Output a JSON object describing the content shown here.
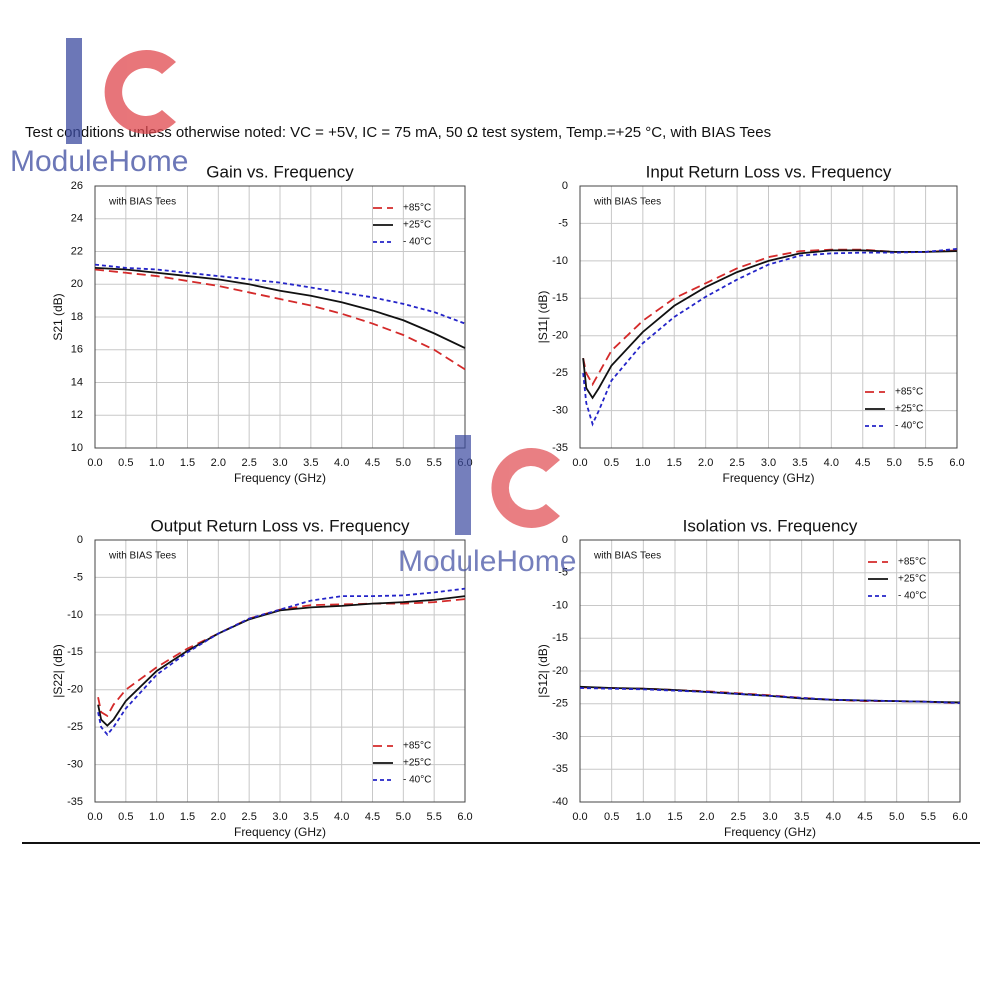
{
  "header": "Test conditions unless otherwise noted:   VC = +5V, IC = 75 mA, 50 Ω test system, Temp.=+25 °C, with BIAS Tees",
  "watermark": "ModuleHome",
  "chart_data": [
    {
      "type": "line",
      "title": "Gain vs. Frequency",
      "annotation": "with BIAS Tees",
      "x_label": "Frequency (GHz)",
      "y_label": "S21 (dB)",
      "x": [
        0,
        0.5,
        1,
        1.5,
        2,
        2.5,
        3,
        3.5,
        4,
        4.5,
        5,
        5.5,
        6
      ],
      "series": [
        {
          "name": "+85°C",
          "color": "#d42a2a",
          "style": "dashed",
          "values": [
            20.9,
            20.7,
            20.5,
            20.2,
            19.9,
            19.5,
            19.1,
            18.7,
            18.2,
            17.6,
            16.9,
            16.0,
            14.8
          ]
        },
        {
          "name": "+25°C",
          "color": "#111111",
          "style": "solid",
          "values": [
            21.0,
            20.9,
            20.7,
            20.5,
            20.3,
            20.0,
            19.6,
            19.3,
            18.9,
            18.4,
            17.8,
            17.0,
            16.1
          ]
        },
        {
          "name": "- 40°C",
          "color": "#2424c8",
          "style": "dotted",
          "values": [
            21.2,
            21.0,
            20.9,
            20.7,
            20.5,
            20.3,
            20.1,
            19.8,
            19.5,
            19.2,
            18.8,
            18.3,
            17.6
          ]
        }
      ],
      "xlim": [
        0,
        6
      ],
      "ylim": [
        10,
        26
      ],
      "xticks": [
        {
          "value": 0,
          "label": "0.0"
        },
        {
          "value": 0.5,
          "label": "0.5"
        },
        {
          "value": 1,
          "label": "1.0"
        },
        {
          "value": 1.5,
          "label": "1.5"
        },
        {
          "value": 2,
          "label": "2.0"
        },
        {
          "value": 2.5,
          "label": "2.5"
        },
        {
          "value": 3,
          "label": "3.0"
        },
        {
          "value": 3.5,
          "label": "3.5"
        },
        {
          "value": 4,
          "label": "4.0"
        },
        {
          "value": 4.5,
          "label": "4.5"
        },
        {
          "value": 5,
          "label": "5.0"
        },
        {
          "value": 5.5,
          "label": "5.5"
        },
        {
          "value": 6,
          "label": "6.0"
        }
      ],
      "yticks": [
        10,
        12,
        14,
        16,
        18,
        20,
        22,
        24,
        26
      ],
      "grid": true,
      "legend": "upper right"
    },
    {
      "type": "line",
      "title": "Input Return Loss vs. Frequency",
      "annotation": "with BIAS Tees",
      "x_label": "Frequency (GHz)",
      "y_label": "|S11| (dB)",
      "x": [
        0.05,
        0.1,
        0.2,
        0.3,
        0.5,
        1,
        1.5,
        2,
        2.5,
        3,
        3.5,
        4,
        4.5,
        5,
        5.5,
        6
      ],
      "series": [
        {
          "name": "+85°C",
          "color": "#d42a2a",
          "style": "dashed",
          "values": [
            -23,
            -25,
            -26.5,
            -25,
            -22,
            -18,
            -15,
            -13,
            -11,
            -9.5,
            -8.7,
            -8.5,
            -8.5,
            -8.8,
            -8.8,
            -8.6
          ]
        },
        {
          "name": "+25°C",
          "color": "#111111",
          "style": "solid",
          "values": [
            -23,
            -27,
            -28.3,
            -27,
            -24,
            -19.5,
            -16,
            -13.5,
            -11.5,
            -10,
            -9,
            -8.6,
            -8.6,
            -8.8,
            -8.8,
            -8.7
          ]
        },
        {
          "name": "- 40°C",
          "color": "#2424c8",
          "style": "dotted",
          "values": [
            -25,
            -29,
            -31.8,
            -30,
            -26,
            -21,
            -17.5,
            -14.8,
            -12.5,
            -10.5,
            -9.3,
            -9,
            -8.9,
            -8.9,
            -8.8,
            -8.4
          ]
        }
      ],
      "xlim": [
        0,
        6
      ],
      "ylim": [
        -35,
        0
      ],
      "xticks": [
        {
          "value": 0,
          "label": "0.0"
        },
        {
          "value": 0.5,
          "label": "0.5"
        },
        {
          "value": 1,
          "label": "1.0"
        },
        {
          "value": 1.5,
          "label": "1.5"
        },
        {
          "value": 2,
          "label": "2.0"
        },
        {
          "value": 2.5,
          "label": "2.5"
        },
        {
          "value": 3,
          "label": "3.0"
        },
        {
          "value": 3.5,
          "label": "3.5"
        },
        {
          "value": 4,
          "label": "4.0"
        },
        {
          "value": 4.5,
          "label": "4.5"
        },
        {
          "value": 5,
          "label": "5.0"
        },
        {
          "value": 5.5,
          "label": "5.5"
        },
        {
          "value": 6,
          "label": "6.0"
        }
      ],
      "yticks": [
        -35,
        -30,
        -25,
        -20,
        -15,
        -10,
        -5,
        0
      ],
      "grid": true,
      "legend": "lower right"
    },
    {
      "type": "line",
      "title": "Output Return Loss vs. Frequency",
      "annotation": "with BIAS Tees",
      "x_label": "Frequency (GHz)",
      "y_label": "|S22| (dB)",
      "x": [
        0.05,
        0.1,
        0.2,
        0.3,
        0.5,
        1,
        1.5,
        2,
        2.5,
        3,
        3.5,
        4,
        4.5,
        5,
        5.5,
        6
      ],
      "series": [
        {
          "name": "+85°C",
          "color": "#d42a2a",
          "style": "dashed",
          "values": [
            -21,
            -23,
            -23.5,
            -22,
            -20,
            -17,
            -14.5,
            -12.5,
            -10.5,
            -9.3,
            -8.7,
            -8.6,
            -8.5,
            -8.5,
            -8.3,
            -7.9
          ]
        },
        {
          "name": "+25°C",
          "color": "#111111",
          "style": "solid",
          "values": [
            -22,
            -24,
            -24.8,
            -24,
            -21.5,
            -17.5,
            -14.8,
            -12.5,
            -10.6,
            -9.4,
            -9,
            -8.8,
            -8.5,
            -8.3,
            -8,
            -7.5
          ]
        },
        {
          "name": "- 40°C",
          "color": "#2424c8",
          "style": "dotted",
          "values": [
            -23,
            -25,
            -26,
            -25,
            -22.5,
            -18,
            -15,
            -12.5,
            -10.5,
            -9.3,
            -8.1,
            -7.5,
            -7.5,
            -7.4,
            -7.0,
            -6.5
          ]
        }
      ],
      "xlim": [
        0,
        6
      ],
      "ylim": [
        -35,
        0
      ],
      "xticks": [
        {
          "value": 0,
          "label": "0.0"
        },
        {
          "value": 0.5,
          "label": "0.5"
        },
        {
          "value": 1,
          "label": "1.0"
        },
        {
          "value": 1.5,
          "label": "1.5"
        },
        {
          "value": 2,
          "label": "2.0"
        },
        {
          "value": 2.5,
          "label": "2.5"
        },
        {
          "value": 3,
          "label": "3.0"
        },
        {
          "value": 3.5,
          "label": "3.5"
        },
        {
          "value": 4,
          "label": "4.0"
        },
        {
          "value": 4.5,
          "label": "4.5"
        },
        {
          "value": 5,
          "label": "5.0"
        },
        {
          "value": 5.5,
          "label": "5.5"
        },
        {
          "value": 6,
          "label": "6.0"
        }
      ],
      "yticks": [
        -35,
        -30,
        -25,
        -20,
        -15,
        -10,
        -5,
        0
      ],
      "grid": true,
      "legend": "lower right"
    },
    {
      "type": "line",
      "title": "Isolation vs. Frequency",
      "annotation": "with BIAS Tees",
      "x_label": "Frequency (GHz)",
      "y_label": "|S12| (dB)",
      "x": [
        0,
        0.5,
        1,
        1.5,
        2,
        2.5,
        3,
        3.5,
        4,
        4.5,
        5,
        5.5,
        6
      ],
      "series": [
        {
          "name": "+85°C",
          "color": "#d42a2a",
          "style": "dashed",
          "values": [
            -22.5,
            -22.6,
            -22.7,
            -22.9,
            -23.1,
            -23.4,
            -23.7,
            -24.1,
            -24.4,
            -24.6,
            -24.6,
            -24.7,
            -24.9
          ]
        },
        {
          "name": "+25°C",
          "color": "#111111",
          "style": "solid",
          "values": [
            -22.4,
            -22.6,
            -22.7,
            -22.9,
            -23.2,
            -23.5,
            -23.8,
            -24.2,
            -24.4,
            -24.5,
            -24.6,
            -24.7,
            -24.8
          ]
        },
        {
          "name": "- 40°C",
          "color": "#2424c8",
          "style": "dotted",
          "values": [
            -22.6,
            -22.7,
            -22.8,
            -23.0,
            -23.2,
            -23.5,
            -23.8,
            -24.1,
            -24.4,
            -24.5,
            -24.6,
            -24.7,
            -24.9
          ]
        }
      ],
      "xlim": [
        0,
        6
      ],
      "ylim": [
        -40,
        0
      ],
      "xticks": [
        {
          "value": 0,
          "label": "0.0"
        },
        {
          "value": 0.5,
          "label": "0.5"
        },
        {
          "value": 1,
          "label": "1.0"
        },
        {
          "value": 1.5,
          "label": "1.5"
        },
        {
          "value": 2,
          "label": "2.0"
        },
        {
          "value": 2.5,
          "label": "2.5"
        },
        {
          "value": 3,
          "label": "3.0"
        },
        {
          "value": 3.5,
          "label": "3.5"
        },
        {
          "value": 4,
          "label": "4.0"
        },
        {
          "value": 4.5,
          "label": "4.5"
        },
        {
          "value": 5,
          "label": "5.0"
        },
        {
          "value": 5.5,
          "label": "5.5"
        },
        {
          "value": 6,
          "label": "6.0"
        }
      ],
      "yticks": [
        -40,
        -35,
        -30,
        -25,
        -20,
        -15,
        -10,
        -5,
        0
      ],
      "grid": true,
      "legend": "upper right"
    }
  ]
}
